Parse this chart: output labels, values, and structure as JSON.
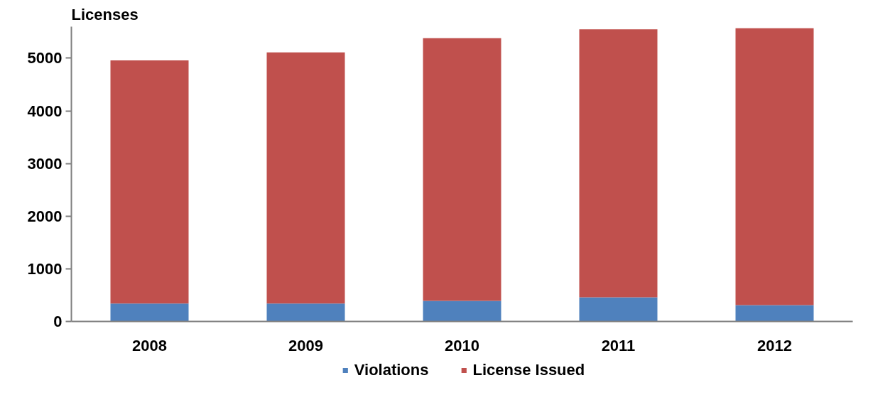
{
  "chart_data": {
    "type": "bar",
    "stacked": true,
    "ylabel": "Licenses",
    "categories": [
      "2008",
      "2009",
      "2010",
      "2011",
      "2012"
    ],
    "series": [
      {
        "name": "Violations",
        "color": "#4f81bd",
        "values": [
          340,
          340,
          390,
          460,
          310
        ]
      },
      {
        "name": "License Issued",
        "color": "#c0504d",
        "values": [
          4620,
          4770,
          4990,
          5090,
          5260
        ]
      }
    ],
    "ylim": [
      0,
      5600
    ],
    "yticks": [
      0,
      1000,
      2000,
      3000,
      4000,
      5000
    ],
    "grid": false,
    "legend": "bottom"
  }
}
